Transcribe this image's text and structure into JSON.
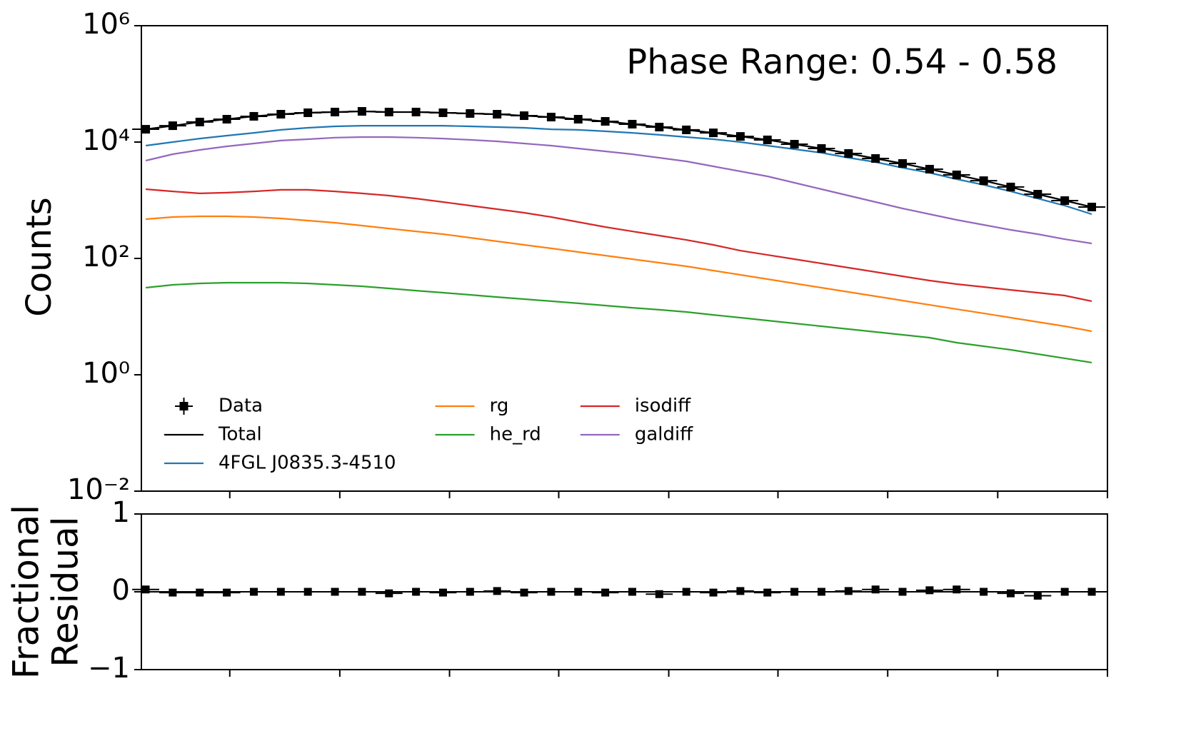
{
  "chart_data": [
    {
      "type": "line",
      "yscale": "log",
      "ylabel": "Counts",
      "annotation": "Phase Range: 0.54 - 0.58",
      "x": [
        0,
        1,
        2,
        3,
        4,
        5,
        6,
        7,
        8,
        9,
        10,
        11,
        12,
        13,
        14,
        15,
        16,
        17,
        18,
        19,
        20,
        21,
        22,
        23,
        24,
        25,
        26,
        27,
        28,
        29,
        30,
        31,
        32,
        33,
        34,
        35
      ],
      "xlim": [
        -0.16,
        35.58
      ],
      "xticks": [
        3.11,
        7.18,
        11.24,
        15.28,
        19.35,
        23.39,
        27.45,
        31.52,
        35.58
      ],
      "ylim": [
        0.01,
        1000000
      ],
      "yticks": [
        {
          "value": 0.01,
          "label": "10⁻²"
        },
        {
          "value": 1,
          "label": "10⁰"
        },
        {
          "value": 100,
          "label": "10²"
        },
        {
          "value": 10000,
          "label": "10⁴"
        },
        {
          "value": 1000000,
          "label": "10⁶"
        }
      ],
      "legend": "lower left",
      "legend_ncol": 3,
      "series": [
        {
          "name": "Data",
          "color": "#000000",
          "marker": "square",
          "xerr": 0.5,
          "values": [
            16600,
            19100,
            22100,
            24700,
            27700,
            30100,
            31900,
            32800,
            33700,
            32800,
            32800,
            31900,
            31000,
            30100,
            28400,
            26900,
            24700,
            22700,
            20300,
            18100,
            16200,
            14400,
            12500,
            10900,
            9190,
            7760,
            6370,
            5220,
            4290,
            3420,
            2730,
            2170,
            1690,
            1270,
            986,
            765
          ]
        },
        {
          "name": "Total",
          "color": "#000000",
          "values": [
            16600,
            19100,
            22100,
            24700,
            27700,
            30100,
            31900,
            32800,
            33700,
            32800,
            32800,
            31900,
            31000,
            30100,
            28400,
            26900,
            24700,
            22700,
            20300,
            18100,
            16200,
            14400,
            12500,
            10900,
            9190,
            7760,
            6370,
            5220,
            4290,
            3420,
            2730,
            2170,
            1690,
            1270,
            986,
            765
          ]
        },
        {
          "name": "4FGL J0835.3-4510",
          "color": "#1f77b4",
          "values": [
            8690,
            10000,
            11500,
            12900,
            14400,
            16200,
            17600,
            18600,
            19100,
            19100,
            19100,
            19100,
            18600,
            18100,
            17600,
            16600,
            16200,
            15300,
            14400,
            13300,
            12200,
            11200,
            10000,
            8690,
            7540,
            6550,
            5370,
            4530,
            3610,
            2970,
            2300,
            1840,
            1420,
            1070,
            809,
            577
          ]
        },
        {
          "name": "rg",
          "color": "#ff7f0e",
          "values": [
            473,
            515,
            530,
            530,
            515,
            487,
            447,
            411,
            367,
            327,
            292,
            261,
            227,
            197,
            171,
            149,
            129,
            112,
            97.2,
            84.4,
            73.3,
            61.8,
            52.2,
            44.1,
            37.2,
            31.4,
            26.5,
            22.4,
            18.9,
            15.9,
            13.4,
            11.4,
            9.59,
            8.09,
            6.83,
            5.6
          ]
        },
        {
          "name": "he_rd",
          "color": "#2ca02c",
          "values": [
            31.4,
            35.2,
            37.2,
            38.3,
            38.3,
            38.3,
            37.2,
            35.2,
            33.2,
            30.5,
            28.0,
            25.8,
            23.7,
            21.7,
            20.0,
            18.4,
            16.9,
            15.5,
            14.2,
            13.1,
            12.0,
            10.7,
            9.59,
            8.56,
            7.64,
            6.83,
            6.1,
            5.45,
            4.86,
            4.35,
            3.57,
            3.1,
            2.69,
            2.27,
            1.92,
            1.62
          ]
        },
        {
          "name": "isodiff",
          "color": "#d62728",
          "values": [
            1550,
            1420,
            1310,
            1350,
            1420,
            1510,
            1510,
            1420,
            1310,
            1200,
            1070,
            931,
            809,
            703,
            610,
            515,
            423,
            347,
            292,
            247,
            208,
            171,
            136,
            115,
            97.2,
            82.0,
            69.2,
            58.4,
            49.3,
            41.6,
            36.2,
            32.3,
            28.8,
            25.8,
            23.0,
            18.4
          ]
        },
        {
          "name": "galdiff",
          "color": "#9467bd",
          "values": [
            4800,
            6180,
            7330,
            8440,
            9450,
            10600,
            11200,
            11900,
            12200,
            12200,
            11900,
            11500,
            10900,
            10300,
            9450,
            8690,
            7760,
            6920,
            6180,
            5370,
            4670,
            3830,
            3140,
            2580,
            2000,
            1550,
            1200,
            931,
            722,
            577,
            460,
            377,
            310,
            261,
            214,
            181
          ]
        }
      ]
    },
    {
      "type": "errorbar",
      "ylabel": [
        "Fractional",
        "Residual"
      ],
      "color": "#000000",
      "xerr": 0.5,
      "reference_line": 0,
      "x": [
        0,
        1,
        2,
        3,
        4,
        5,
        6,
        7,
        8,
        9,
        10,
        11,
        12,
        13,
        14,
        15,
        16,
        17,
        18,
        19,
        20,
        21,
        22,
        23,
        24,
        25,
        26,
        27,
        28,
        29,
        30,
        31,
        32,
        33,
        34,
        35
      ],
      "xlim": [
        -0.16,
        35.58
      ],
      "xticks": [
        3.11,
        7.18,
        11.24,
        15.28,
        19.35,
        23.39,
        27.45,
        31.52,
        35.58
      ],
      "ylim": [
        -1,
        1
      ],
      "yticks": [
        {
          "value": -1,
          "label": "−1"
        },
        0,
        1
      ],
      "values": [
        0.03,
        -0.01,
        -0.01,
        -0.01,
        0,
        0,
        0,
        0,
        0,
        -0.02,
        0,
        -0.01,
        0,
        0.01,
        -0.01,
        0,
        0,
        -0.01,
        0,
        -0.03,
        0,
        -0.01,
        0.01,
        -0.01,
        0,
        0,
        0.01,
        0.03,
        0,
        0.02,
        0.03,
        0,
        -0.02,
        -0.05,
        0,
        0
      ]
    }
  ]
}
